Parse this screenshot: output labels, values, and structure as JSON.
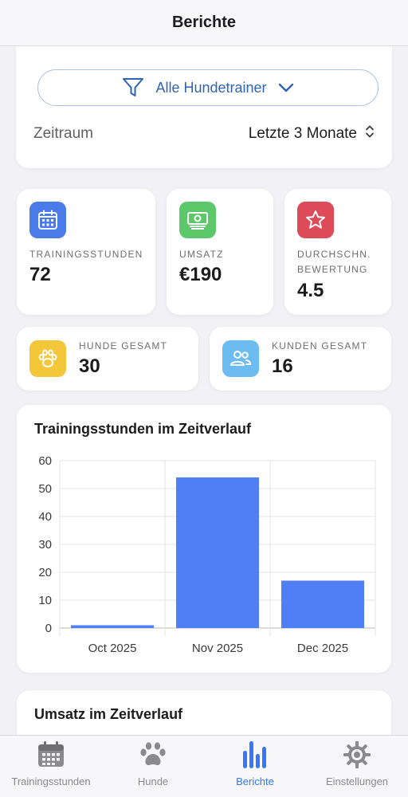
{
  "header": {
    "title": "Berichte"
  },
  "filter": {
    "trainer_label": "Alle Hundetrainer",
    "period_label": "Zeitraum",
    "period_value": "Letzte 3 Monate"
  },
  "stats": {
    "training_hours": {
      "label": "TRAININGSSTUNDEN",
      "value": "72",
      "color": "#4a7be8"
    },
    "revenue": {
      "label": "UMSATZ",
      "value": "€190",
      "color": "#5cc86a"
    },
    "rating": {
      "label_line1": "DURCHSCHN.",
      "label_line2": "BEWERTUNG",
      "value": "4.5",
      "color": "#dd4a58"
    },
    "dogs": {
      "label": "HUNDE GESAMT",
      "value": "30",
      "color": "#f4c63a"
    },
    "customers": {
      "label": "KUNDEN GESAMT",
      "value": "16",
      "color": "#6cbcf2"
    }
  },
  "chart_data": {
    "type": "bar",
    "title": "Trainingsstunden im Zeitverlauf",
    "categories": [
      "Oct 2025",
      "Nov 2025",
      "Dec 2025"
    ],
    "values": [
      1,
      54,
      17
    ],
    "ylim": [
      0,
      60
    ],
    "yticks": [
      0,
      10,
      20,
      30,
      40,
      50,
      60
    ],
    "grid": true,
    "bar_color": "#4f7ef5"
  },
  "revenue_chart": {
    "title": "Umsatz im Zeitverlauf"
  },
  "tabbar": {
    "items": [
      {
        "label": "Trainingsstunden",
        "icon": "calendar-icon"
      },
      {
        "label": "Hunde",
        "icon": "paw-icon"
      },
      {
        "label": "Berichte",
        "icon": "bar-chart-icon"
      },
      {
        "label": "Einstellungen",
        "icon": "gear-icon"
      }
    ],
    "active_index": 2,
    "active_color": "#3478f6"
  }
}
